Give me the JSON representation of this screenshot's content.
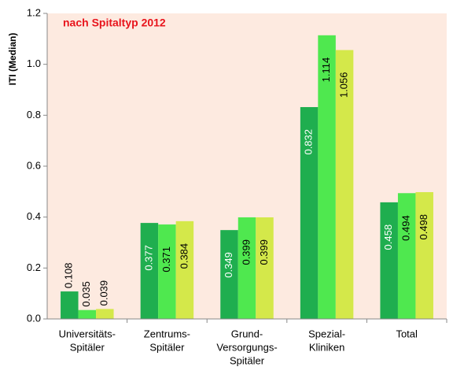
{
  "chart_data": {
    "type": "bar",
    "title": "nach Spitaltyp 2012",
    "y_label": "ITI (Median)",
    "categories": [
      [
        "Universitäts-",
        "Spitäler"
      ],
      [
        "Zentrums-",
        "Spitäler"
      ],
      [
        "Grund-",
        "Versorgungs-",
        "Spitäler"
      ],
      [
        "Spezial-",
        "Kliniken"
      ],
      [
        "Total"
      ]
    ],
    "series": [
      {
        "color": "#1fae4f",
        "values": [
          0.108,
          0.377,
          0.349,
          0.832,
          0.458
        ]
      },
      {
        "color": "#4fe84f",
        "values": [
          0.035,
          0.371,
          0.399,
          1.114,
          0.494
        ]
      },
      {
        "color": "#d4e84a",
        "values": [
          0.039,
          0.384,
          0.399,
          1.056,
          0.498
        ]
      }
    ],
    "ylim": [
      0,
      1.2
    ],
    "yticks": [
      {
        "value": 0,
        "label": "0.0"
      },
      0.2,
      0.4,
      0.6,
      0.8,
      {
        "value": 1,
        "label": "1.0"
      },
      1.2
    ],
    "background": "#fdeae0"
  }
}
